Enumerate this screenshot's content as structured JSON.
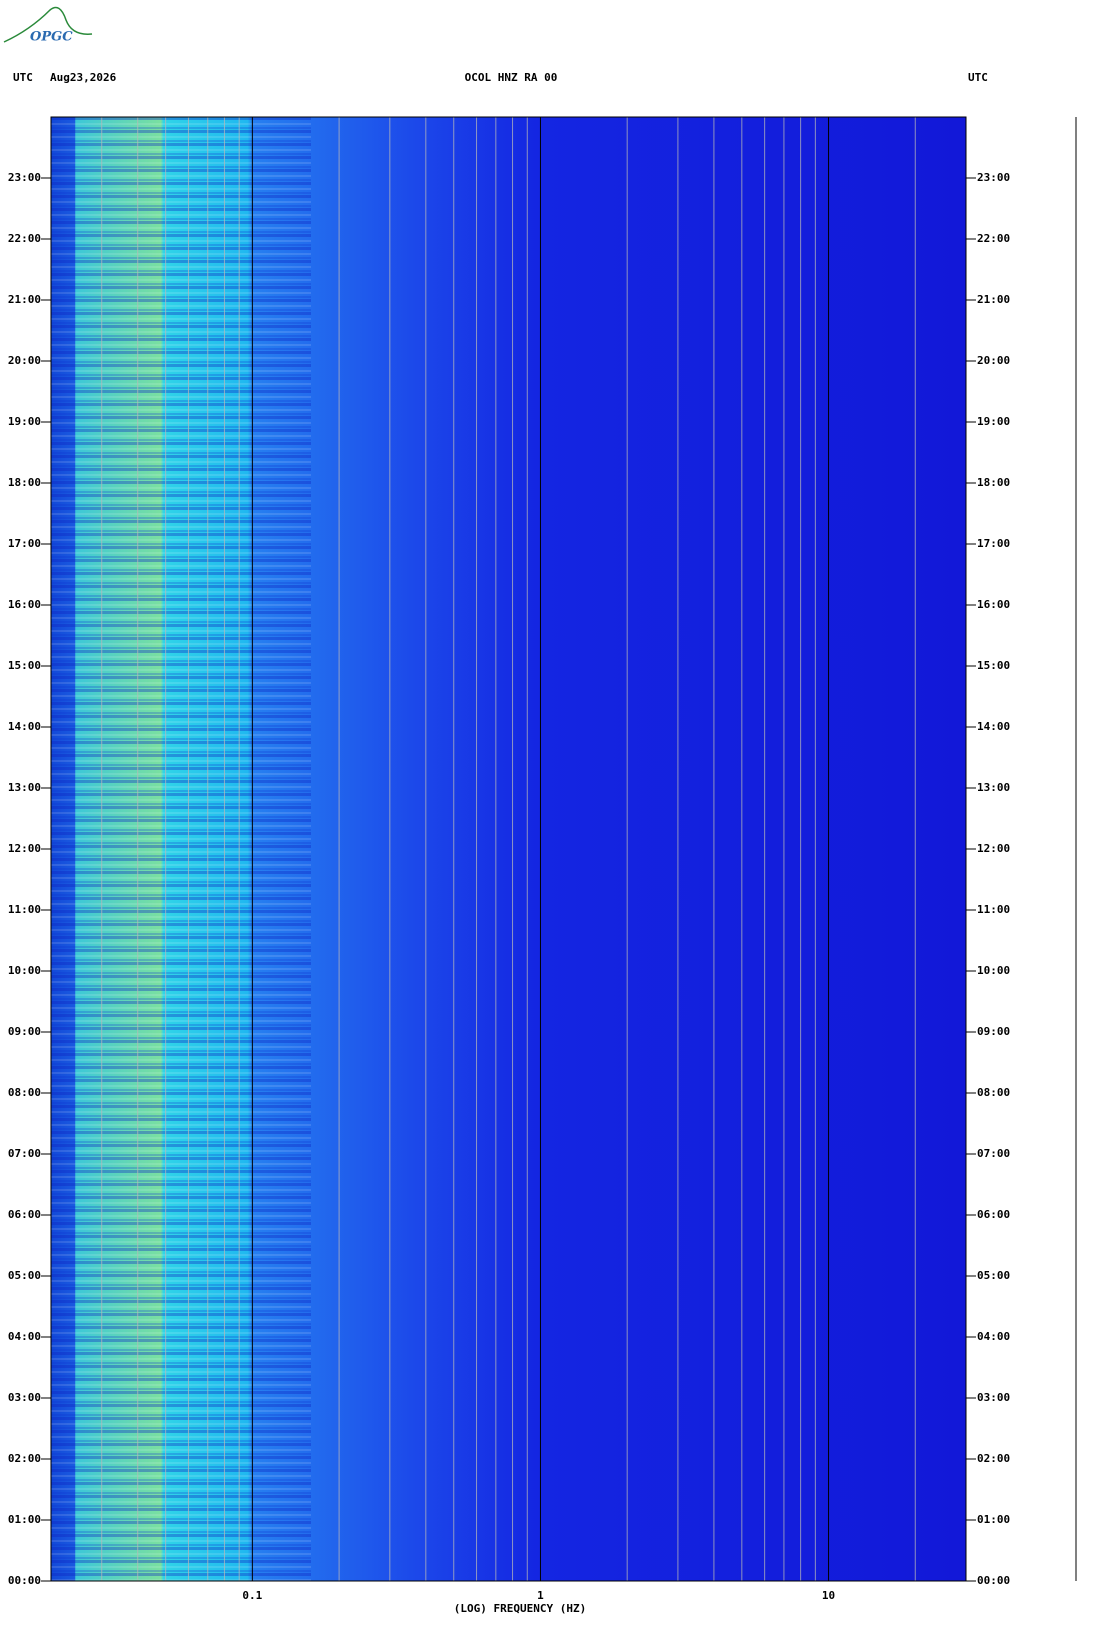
{
  "chart_data": {
    "type": "spectrogram",
    "logo": "OPGC",
    "left_label": "UTC",
    "date": "Aug23,2026",
    "title": "OCOL HNZ RA 00",
    "right_label": "UTC",
    "xlabel": "(LOG) FREQUENCY (HZ)",
    "log_x": true,
    "xlim": [
      0.02,
      30
    ],
    "xticks": [
      0.1,
      1,
      10
    ],
    "xgrid": [
      0.03,
      0.04,
      0.05,
      0.06,
      0.07,
      0.08,
      0.09,
      0.2,
      0.3,
      0.4,
      0.5,
      0.6,
      0.7,
      0.8,
      0.9,
      2,
      3,
      4,
      5,
      6,
      7,
      8,
      9,
      20
    ],
    "ylim": [
      0,
      24
    ],
    "yticks": [
      {
        "value": 0,
        "label": "00:00"
      },
      {
        "value": 1,
        "label": "01:00"
      },
      {
        "value": 2,
        "label": "02:00"
      },
      {
        "value": 3,
        "label": "03:00"
      },
      {
        "value": 4,
        "label": "04:00"
      },
      {
        "value": 5,
        "label": "05:00"
      },
      {
        "value": 6,
        "label": "06:00"
      },
      {
        "value": 7,
        "label": "07:00"
      },
      {
        "value": 8,
        "label": "08:00"
      },
      {
        "value": 9,
        "label": "09:00"
      },
      {
        "value": 10,
        "label": "10:00"
      },
      {
        "value": 11,
        "label": "11:00"
      },
      {
        "value": 12,
        "label": "12:00"
      },
      {
        "value": 13,
        "label": "13:00"
      },
      {
        "value": 14,
        "label": "14:00"
      },
      {
        "value": 15,
        "label": "15:00"
      },
      {
        "value": 16,
        "label": "16:00"
      },
      {
        "value": 17,
        "label": "17:00"
      },
      {
        "value": 18,
        "label": "18:00"
      },
      {
        "value": 19,
        "label": "19:00"
      },
      {
        "value": 20,
        "label": "20:00"
      },
      {
        "value": 21,
        "label": "21:00"
      },
      {
        "value": 22,
        "label": "22:00"
      },
      {
        "value": 23,
        "label": "23:00"
      }
    ]
  }
}
